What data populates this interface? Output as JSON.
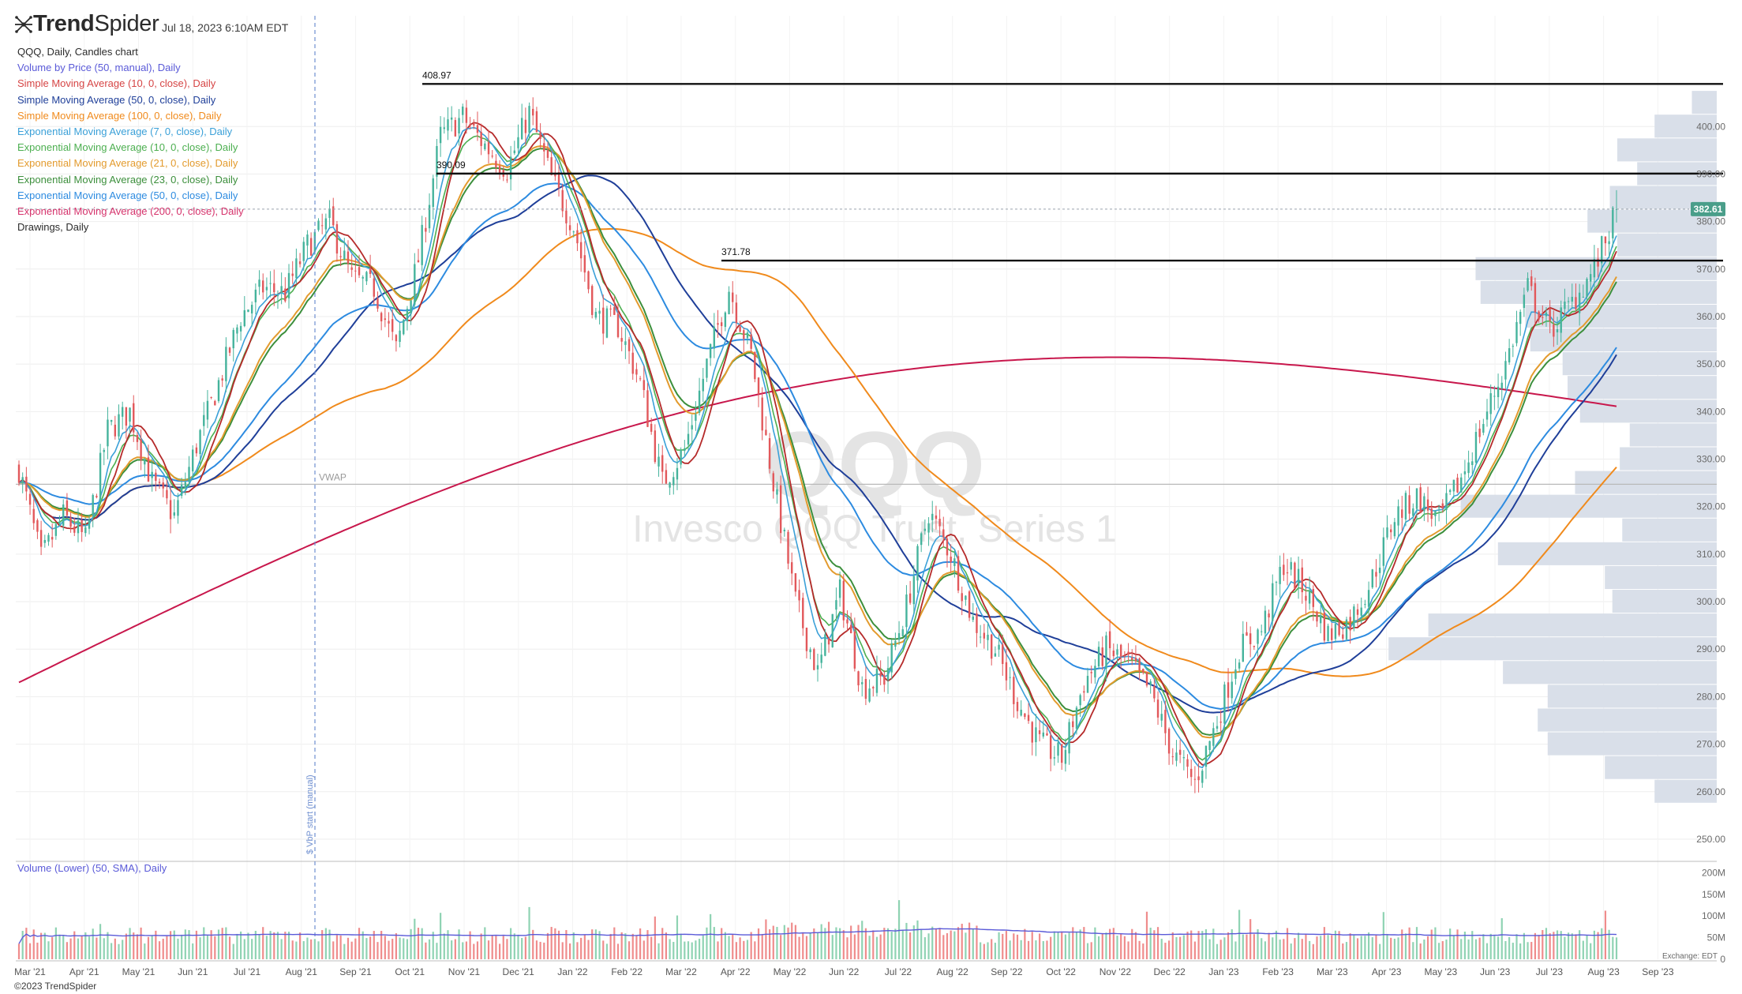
{
  "header": {
    "brand_prefix": "Trend",
    "brand_suffix": "Spider",
    "timestamp": "Jul 18, 2023 6:10AM EDT"
  },
  "legend": [
    {
      "label": "QQQ, Daily, Candles chart",
      "color": "#2b2b2b"
    },
    {
      "label": "Volume by Price (50, manual), Daily",
      "color": "#5a5ad8"
    },
    {
      "label": "Simple Moving Average (10, 0, close), Daily",
      "color": "#d64545"
    },
    {
      "label": "Simple Moving Average (50, 0, close), Daily",
      "color": "#1f3f99"
    },
    {
      "label": "Simple Moving Average (100, 0, close), Daily",
      "color": "#f08a1c"
    },
    {
      "label": "Exponential Moving Average (7, 0, close), Daily",
      "color": "#3aa0d8"
    },
    {
      "label": "Exponential Moving Average (10, 0, close), Daily",
      "color": "#4caf50"
    },
    {
      "label": "Exponential Moving Average (21, 0, close), Daily",
      "color": "#e39b2e"
    },
    {
      "label": "Exponential Moving Average (23, 0, close), Daily",
      "color": "#3c8f3c"
    },
    {
      "label": "Exponential Moving Average (50, 0, close), Daily",
      "color": "#2d8be0"
    },
    {
      "label": "Exponential Moving Average (200, 0, close), Daily",
      "color": "#d6336c"
    },
    {
      "label": "Drawings, Daily",
      "color": "#2b2b2b"
    }
  ],
  "volume_legend": "Volume (Lower) (50, SMA), Daily",
  "footer": {
    "copyright": "©2023 TrendSpider",
    "exchange": "Exchange: EDT"
  },
  "colors": {
    "up": "#45b39c",
    "down": "#e2585b",
    "up_vol": "#8fd3b3",
    "down_vol": "#ef8c8c",
    "vbp": "#d7dde8",
    "price_tag": "#4a9e8a",
    "grid": "#eeeeee",
    "ema200": "#c8174c"
  },
  "chart_data": {
    "type": "candlestick",
    "symbol": "QQQ",
    "watermark_symbol": "QQQ",
    "watermark_name": "Invesco QQQ Trust, Series 1",
    "vwap_label": "VWAP",
    "vbp_start_label": "$ VbP start (manual)",
    "last_price": "382.61",
    "y_ticks": [
      "400.00",
      "390.00",
      "380.00",
      "370.00",
      "360.00",
      "350.00",
      "340.00",
      "330.00",
      "320.00",
      "310.00",
      "300.00",
      "290.00",
      "280.00",
      "270.00",
      "260.00",
      "250.00"
    ],
    "y_range": [
      246,
      414
    ],
    "x_ticks": [
      "Mar '21",
      "Apr '21",
      "May '21",
      "Jun '21",
      "Jul '21",
      "Aug '21",
      "Sep '21",
      "Oct '21",
      "Nov '21",
      "Dec '21",
      "Jan '22",
      "Feb '22",
      "Mar '22",
      "Apr '22",
      "May '22",
      "Jun '22",
      "Jul '22",
      "Aug '22",
      "Sep '22",
      "Oct '22",
      "Nov '22",
      "Dec '22",
      "Jan '23",
      "Feb '23",
      "Mar '23",
      "Apr '23",
      "May '23",
      "Jun '23",
      "Jul '23",
      "Aug '23",
      "Sep '23"
    ],
    "horizontal_levels": [
      {
        "label": "408.97",
        "value": 408.97
      },
      {
        "label": "390.09",
        "value": 390.09
      },
      {
        "label": "371.78",
        "value": 371.78
      }
    ],
    "vwap_value": 324.7,
    "volume_ticks": [
      "200M",
      "150M",
      "100M",
      "50M",
      "0"
    ],
    "volume_range_millions": [
      0,
      210
    ],
    "price_path": [
      [
        0,
        328
      ],
      [
        6,
        309
      ],
      [
        12,
        318
      ],
      [
        18,
        313
      ],
      [
        24,
        336
      ],
      [
        30,
        340
      ],
      [
        36,
        325
      ],
      [
        42,
        318
      ],
      [
        48,
        333
      ],
      [
        54,
        346
      ],
      [
        60,
        360
      ],
      [
        66,
        366
      ],
      [
        72,
        365
      ],
      [
        78,
        375
      ],
      [
        84,
        380
      ],
      [
        90,
        368
      ],
      [
        96,
        366
      ],
      [
        102,
        353
      ],
      [
        108,
        372
      ],
      [
        114,
        398
      ],
      [
        120,
        402
      ],
      [
        126,
        396
      ],
      [
        132,
        391
      ],
      [
        138,
        403
      ],
      [
        144,
        389
      ],
      [
        150,
        379
      ],
      [
        156,
        360
      ],
      [
        162,
        358
      ],
      [
        168,
        346
      ],
      [
        174,
        325
      ],
      [
        180,
        332
      ],
      [
        186,
        350
      ],
      [
        192,
        366
      ],
      [
        198,
        352
      ],
      [
        204,
        325
      ],
      [
        210,
        300
      ],
      [
        216,
        285
      ],
      [
        222,
        302
      ],
      [
        228,
        282
      ],
      [
        234,
        284
      ],
      [
        240,
        299
      ],
      [
        246,
        319
      ],
      [
        252,
        310
      ],
      [
        258,
        296
      ],
      [
        264,
        290
      ],
      [
        270,
        279
      ],
      [
        276,
        270
      ],
      [
        282,
        267
      ],
      [
        288,
        283
      ],
      [
        294,
        290
      ],
      [
        300,
        287
      ],
      [
        306,
        281
      ],
      [
        312,
        268
      ],
      [
        318,
        262
      ],
      [
        324,
        275
      ],
      [
        330,
        290
      ],
      [
        336,
        294
      ],
      [
        342,
        308
      ],
      [
        348,
        302
      ],
      [
        354,
        293
      ],
      [
        360,
        296
      ],
      [
        366,
        305
      ],
      [
        372,
        318
      ],
      [
        378,
        322
      ],
      [
        384,
        317
      ],
      [
        390,
        326
      ],
      [
        396,
        338
      ],
      [
        402,
        350
      ],
      [
        408,
        366
      ],
      [
        414,
        357
      ],
      [
        420,
        363
      ],
      [
        426,
        370
      ],
      [
        432,
        382
      ]
    ],
    "vbp_profile": [
      [
        260,
        25
      ],
      [
        265,
        45
      ],
      [
        270,
        68
      ],
      [
        275,
        72
      ],
      [
        280,
        68
      ],
      [
        285,
        86
      ],
      [
        290,
        132
      ],
      [
        295,
        116
      ],
      [
        300,
        42
      ],
      [
        305,
        45
      ],
      [
        310,
        88
      ],
      [
        315,
        38
      ],
      [
        320,
        103
      ],
      [
        325,
        57
      ],
      [
        330,
        39
      ],
      [
        335,
        35
      ],
      [
        340,
        55
      ],
      [
        345,
        60
      ],
      [
        350,
        62
      ],
      [
        355,
        75
      ],
      [
        360,
        77
      ],
      [
        365,
        95
      ],
      [
        370,
        97
      ],
      [
        375,
        40
      ],
      [
        380,
        52
      ],
      [
        385,
        43
      ],
      [
        390,
        32
      ],
      [
        395,
        40
      ],
      [
        400,
        25
      ],
      [
        405,
        10
      ]
    ]
  }
}
